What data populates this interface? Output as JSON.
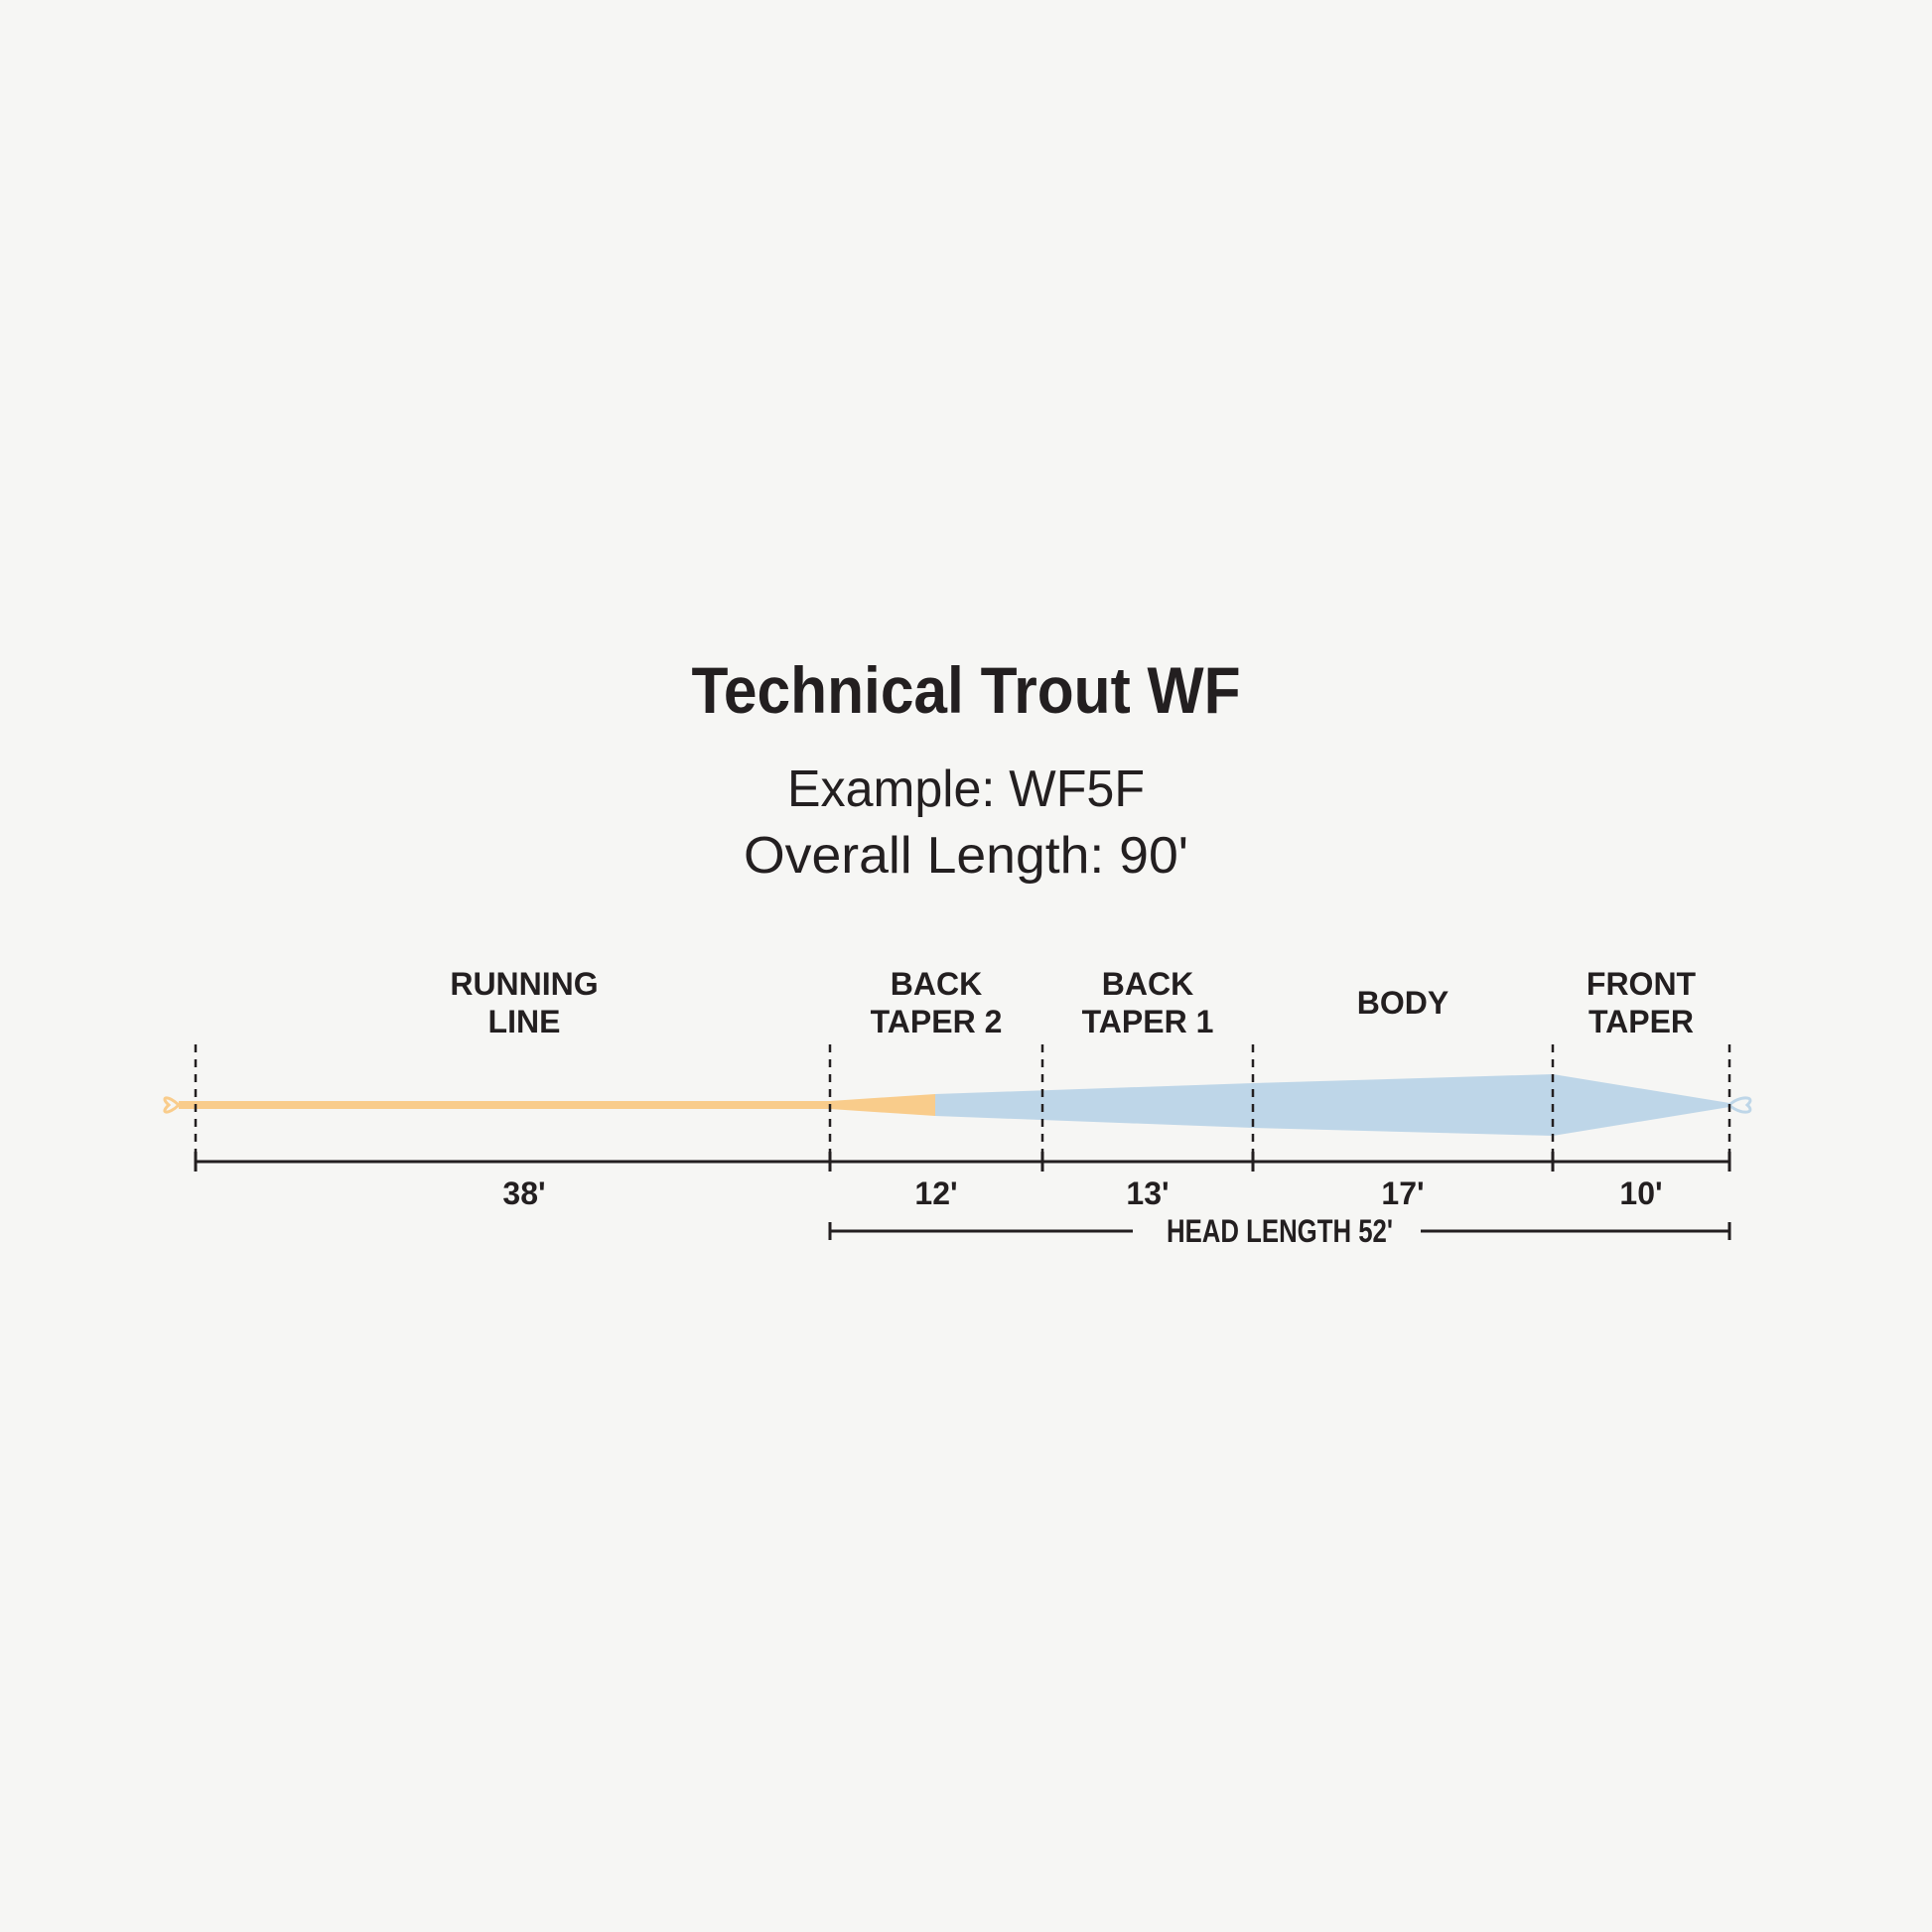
{
  "title": "Technical Trout WF",
  "example": "Example: WF5F",
  "overall_length": "Overall Length: 90'",
  "colors": {
    "running_line": "#f9cc8b",
    "head": "#bed6e8",
    "ink": "#231f20",
    "background": "#f6f6f4"
  },
  "segments": [
    {
      "label_lines": [
        "RUNNING",
        "LINE"
      ],
      "length": "38'",
      "length_ft": 38
    },
    {
      "label_lines": [
        "BACK",
        "TAPER 2"
      ],
      "length": "12'",
      "length_ft": 12
    },
    {
      "label_lines": [
        "BACK",
        "TAPER 1"
      ],
      "length": "13'",
      "length_ft": 13
    },
    {
      "label_lines": [
        "BODY"
      ],
      "length": "17'",
      "length_ft": 17
    },
    {
      "label_lines": [
        "FRONT",
        "TAPER"
      ],
      "length": "10'",
      "length_ft": 10
    }
  ],
  "head_length": "HEAD LENGTH 52'"
}
